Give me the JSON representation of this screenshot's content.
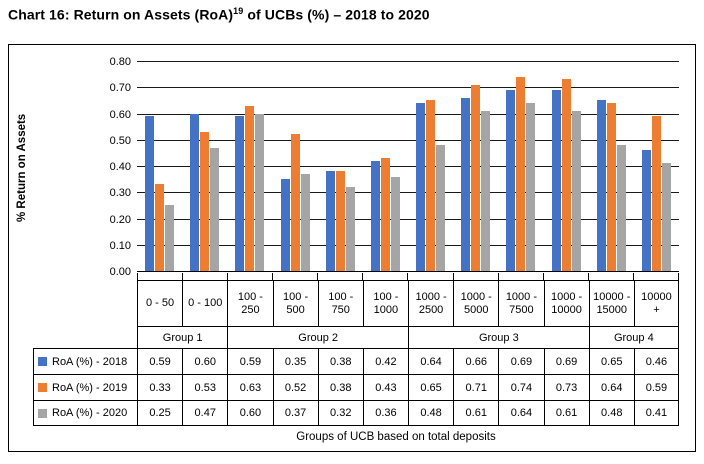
{
  "title": {
    "prefix": "Chart 16: Return on Assets (RoA)",
    "superscript": "19",
    "suffix": " of UCBs (%) – 2018 to 2020"
  },
  "chart_data": {
    "type": "bar",
    "title": "Chart 16: Return on Assets (RoA)19 of UCBs (%) – 2018 to 2020",
    "xlabel": "Groups of UCB based on total deposits",
    "ylabel": "% Return on Assets",
    "ylim": [
      0,
      0.8
    ],
    "ytick_step": 0.1,
    "ytick_format_decimals": 2,
    "grid": true,
    "legend_position": "data-table-left",
    "categories": [
      "0 - 50",
      "0 - 100",
      "100 - 250",
      "100 - 500",
      "100 - 750",
      "100 - 1000",
      "1000 - 2500",
      "1000 - 5000",
      "1000 - 7500",
      "1000 - 10000",
      "10000 - 15000",
      "10000 +"
    ],
    "groups": [
      {
        "label": "Group 1",
        "span": 2
      },
      {
        "label": "Group 2",
        "span": 4
      },
      {
        "label": "Group 3",
        "span": 4
      },
      {
        "label": "Group 4",
        "span": 2
      }
    ],
    "series": [
      {
        "name": "RoA (%) - 2018",
        "color": "#4472C4",
        "values": [
          0.59,
          0.6,
          0.59,
          0.35,
          0.38,
          0.42,
          0.64,
          0.66,
          0.69,
          0.69,
          0.65,
          0.46
        ]
      },
      {
        "name": "RoA (%) - 2019",
        "color": "#ED7D31",
        "values": [
          0.33,
          0.53,
          0.63,
          0.52,
          0.38,
          0.43,
          0.65,
          0.71,
          0.74,
          0.73,
          0.64,
          0.59
        ]
      },
      {
        "name": "RoA (%) - 2020",
        "color": "#A5A5A5",
        "values": [
          0.25,
          0.47,
          0.6,
          0.37,
          0.32,
          0.36,
          0.48,
          0.61,
          0.64,
          0.61,
          0.48,
          0.41
        ]
      }
    ]
  }
}
